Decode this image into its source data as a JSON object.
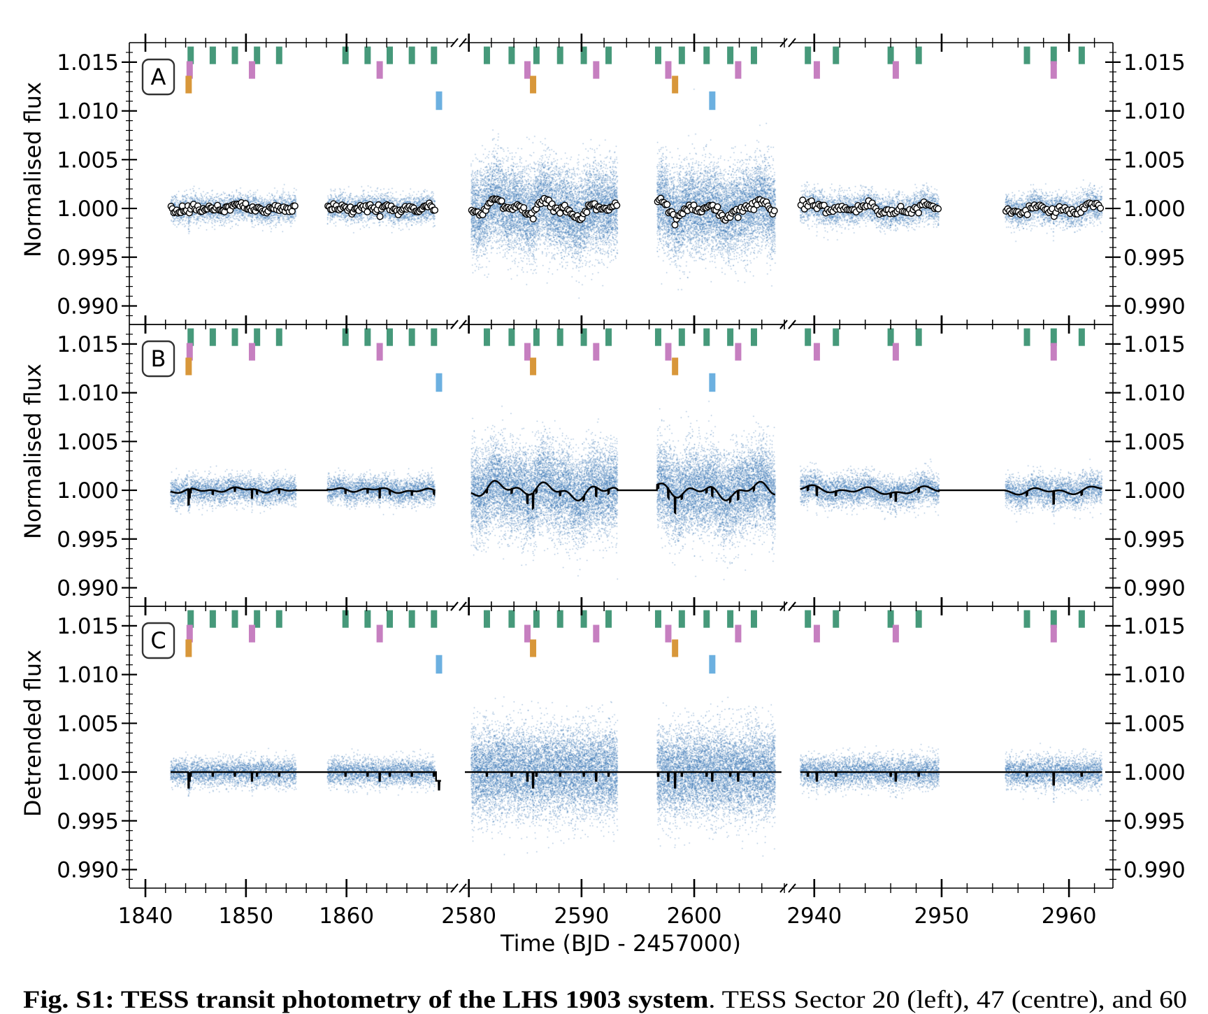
{
  "chart_data": {
    "type": "scatter",
    "title": "",
    "xlabel": "Time (BJD - 2457000)",
    "ylim": [
      0.9881,
      1.017
    ],
    "yticks": [
      1.015,
      1.01,
      1.005,
      1.0,
      0.995,
      0.99
    ],
    "ytick_labels": [
      "1.015",
      "1.010",
      "1.005",
      "1.000",
      "0.995",
      "0.990"
    ],
    "grid": false,
    "panels": [
      {
        "label": "A",
        "ylabel": "Normalised flux",
        "content": "raw flux points with binned points"
      },
      {
        "label": "B",
        "ylabel": "Normalised flux",
        "content": "raw flux points with GP + transit model"
      },
      {
        "label": "C",
        "ylabel": "Detrended flux",
        "content": "detrended flux points with transit model"
      }
    ],
    "x_segments": [
      {
        "sector": 20,
        "xlim": [
          1838.4,
          1870.8
        ],
        "ticks": [
          1840,
          1850,
          1860
        ],
        "tick_labels": [
          "1840",
          "1850",
          "1860"
        ],
        "minor_step": 2,
        "data_ranges": [
          [
            1842.5,
            1855.0
          ],
          [
            1858.1,
            1868.8
          ]
        ],
        "noise_sigma": 0.0007,
        "variability_amp": 0.00025
      },
      {
        "sector": 47,
        "xlim": [
          2579.4,
          2608.0
        ],
        "ticks": [
          2580,
          2590,
          2600
        ],
        "tick_labels": [
          "2580",
          "2590",
          "2600"
        ],
        "minor_step": 2,
        "data_ranges": [
          [
            2580.2,
            2593.2
          ],
          [
            2596.7,
            2607.2
          ]
        ],
        "noise_sigma": 0.0022,
        "variability_amp": 0.0008
      },
      {
        "sector": 60,
        "xlim": [
          2938.2,
          2963.45
        ],
        "ticks": [
          2940,
          2950,
          2960
        ],
        "tick_labels": [
          "2940",
          "2950",
          "2960"
        ],
        "minor_step": 2,
        "data_ranges": [
          [
            2938.9,
            2949.8
          ],
          [
            2955.0,
            2962.6
          ]
        ],
        "noise_sigma": 0.0008,
        "variability_amp": 0.0004
      }
    ],
    "transit_markers": [
      {
        "planet": "green",
        "color": "#46997a",
        "flux_range": [
          1.0148,
          1.0166
        ],
        "depth": 0.0004,
        "times": [
          1844.5,
          1846.7,
          1848.9,
          1851.1,
          1853.3,
          1859.9,
          1862.1,
          1864.3,
          1866.5,
          1868.7,
          2581.6,
          2583.8,
          2586.0,
          2588.1,
          2590.2,
          2592.4,
          2596.8,
          2598.9,
          2601.1,
          2603.2,
          2605.3,
          2939.5,
          2941.7,
          2946.0,
          2948.2,
          2956.7,
          2958.8,
          2961.0
        ]
      },
      {
        "planet": "pink",
        "color": "#c67fc0",
        "flux_range": [
          1.0133,
          1.0151
        ],
        "depth": 0.0009,
        "times": [
          1844.4,
          1850.6,
          1863.3,
          2585.2,
          2591.3,
          2597.7,
          2603.9,
          2940.2,
          2946.4,
          2958.8
        ]
      },
      {
        "planet": "orange",
        "color": "#d8973a",
        "flux_range": [
          1.0118,
          1.0136
        ],
        "depth": 0.0016,
        "times": [
          1844.3,
          2585.7,
          2598.3
        ]
      },
      {
        "planet": "blue",
        "color": "#6cb0e0",
        "flux_range": [
          1.0101,
          1.012
        ],
        "depth": 0.0009,
        "times": [
          1869.2,
          2601.6
        ]
      }
    ],
    "point_color": "#2f6fb0",
    "model_color": "#000000"
  },
  "caption": {
    "bold": "Fig. S1: TESS transit photometry of the LHS 1903 system",
    "rest": ". TESS Sector 20 (left), 47 (centre), and 60"
  }
}
